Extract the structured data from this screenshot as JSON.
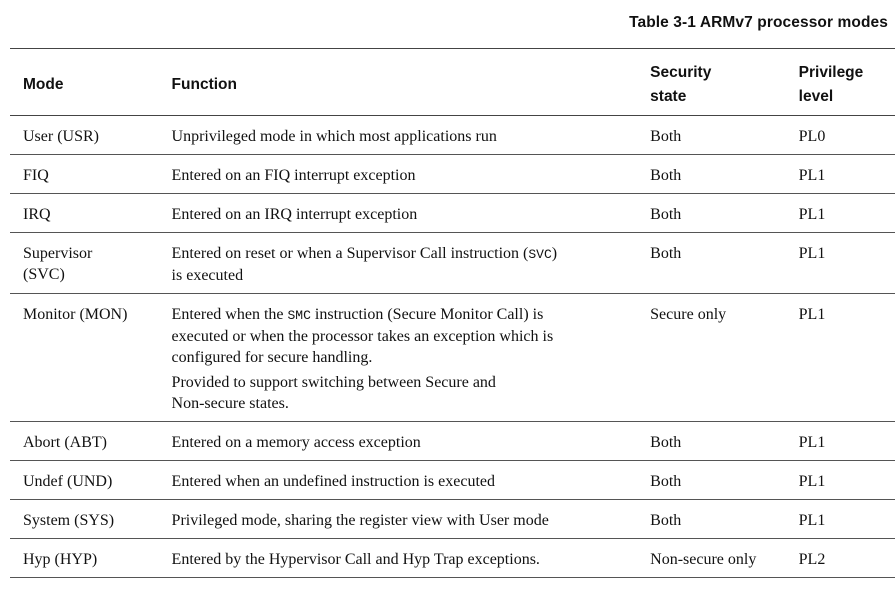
{
  "caption": "Table 3-1 ARMv7 processor modes",
  "headers": {
    "mode": "Mode",
    "function": "Function",
    "security_1": "Security",
    "security_2": "state",
    "privilege_1": "Privilege",
    "privilege_2": "level"
  },
  "rows": [
    {
      "mode": "User (USR)",
      "func": "Unprivileged mode in which most applications run",
      "security": "Both",
      "privilege": "PL0"
    },
    {
      "mode": "FIQ",
      "func": "Entered on an FIQ interrupt exception",
      "security": "Both",
      "privilege": "PL1"
    },
    {
      "mode": "IRQ",
      "func": "Entered on an IRQ interrupt exception",
      "security": "Both",
      "privilege": "PL1"
    },
    {
      "mode_1": "Supervisor",
      "mode_2": "(SVC)",
      "func_a": "Entered on reset or when a Supervisor Call instruction (",
      "func_code": "SVC",
      "func_b": ")",
      "func_c": "is executed",
      "security": "Both",
      "privilege": "PL1"
    },
    {
      "mode": "Monitor (MON)",
      "func_a": "Entered when the ",
      "func_code": "SMC",
      "func_b": " instruction (Secure Monitor Call) is",
      "func_c": "executed or when the processor takes an exception which is",
      "func_d": "configured for secure handling.",
      "func_p2_1": "Provided to support switching between Secure and",
      "func_p2_2": "Non-secure states.",
      "security": "Secure only",
      "privilege": "PL1"
    },
    {
      "mode": "Abort (ABT)",
      "func": "Entered on a memory access exception",
      "security": "Both",
      "privilege": "PL1"
    },
    {
      "mode": "Undef (UND)",
      "func": "Entered when an undefined instruction is executed",
      "security": "Both",
      "privilege": "PL1"
    },
    {
      "mode": "System (SYS)",
      "func": "Privileged mode, sharing the register view with User mode",
      "security": "Both",
      "privilege": "PL1"
    },
    {
      "mode": "Hyp (HYP)",
      "func": "Entered by the Hypervisor Call and Hyp Trap exceptions.",
      "security": "Non-secure only",
      "privilege": "PL2"
    }
  ]
}
